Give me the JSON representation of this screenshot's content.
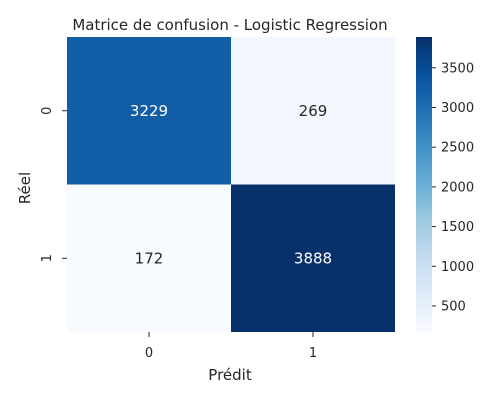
{
  "chart_data": {
    "type": "heatmap",
    "title": "Matrice de confusion - Logistic Regression",
    "xlabel": "Prédit",
    "ylabel": "Réel",
    "x_categories": [
      "0",
      "1"
    ],
    "y_categories": [
      "0",
      "1"
    ],
    "values": [
      [
        3229,
        269
      ],
      [
        172,
        3888
      ]
    ],
    "colormap": "Blues",
    "colorbar": {
      "range": [
        172,
        3888
      ],
      "ticks": [
        500,
        1000,
        1500,
        2000,
        2500,
        3000,
        3500
      ],
      "tick_labels": [
        "500",
        "1000",
        "1500",
        "2000",
        "2500",
        "3000",
        "3500"
      ]
    },
    "annotation_colors": {
      "dark_cell": "#ffffff",
      "light_cell": "#262626"
    }
  }
}
